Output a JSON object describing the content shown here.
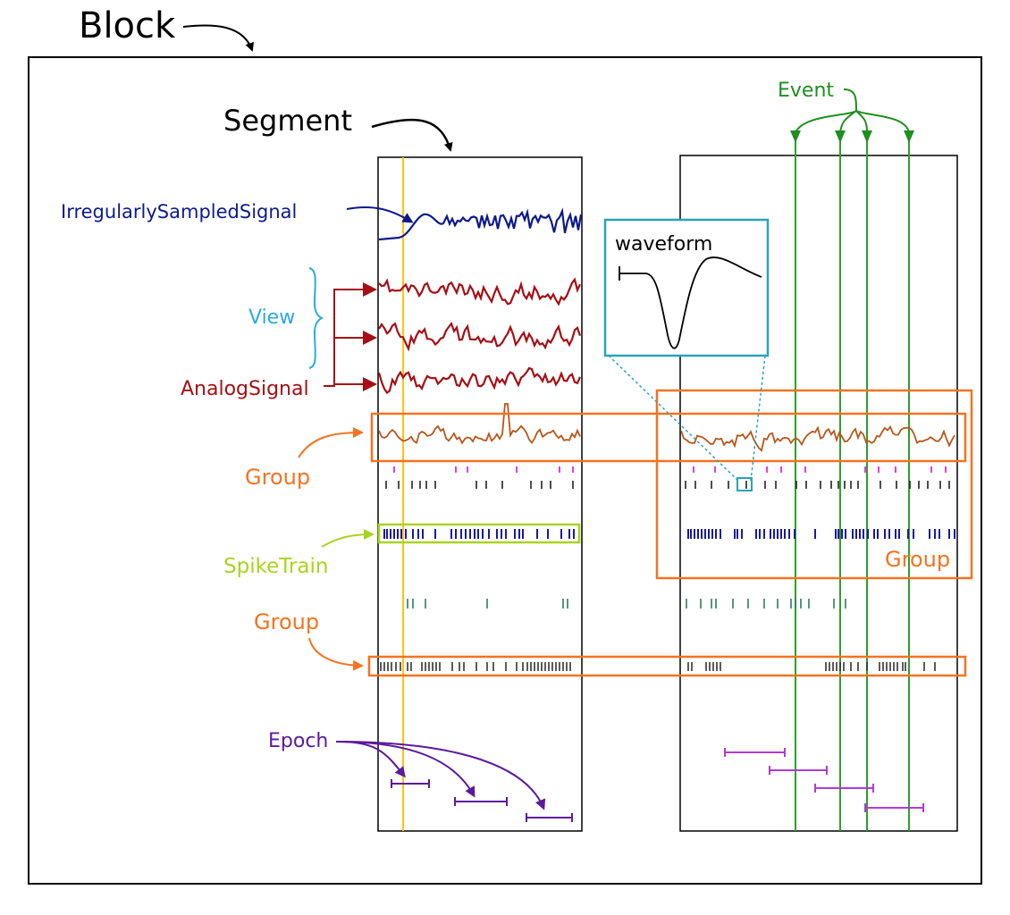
{
  "labels": {
    "block": "Block",
    "segment": "Segment",
    "event": "Event",
    "irregular": "IrregularlySampledSignal",
    "view": "View",
    "analog": "AnalogSignal",
    "group1": "Group",
    "group2": "Group",
    "group3": "Group",
    "spiketrain": "SpikeTrain",
    "epoch": "Epoch",
    "waveform": "waveform"
  },
  "colors": {
    "block": "#000000",
    "segment": "#000000",
    "event": "#1f8f1f",
    "event_lines": "#2ca02c",
    "irregular": "#0d1a8c",
    "view": "#29abe2",
    "analog": "#a50f15",
    "group": "#f47320",
    "group_signal": "#b8561a",
    "spiketrain": "#a8d41e",
    "spikes_blue": "#1a1a9c",
    "spikes_black": "#222222",
    "spikes_magenta": "#e040e0",
    "spikes_teal": "#2e7d5b",
    "epoch": "#5b1a9c",
    "epoch_right": "#b03ad6",
    "waveform_box": "#29a3b8",
    "cursor": "#ffc20e"
  }
}
